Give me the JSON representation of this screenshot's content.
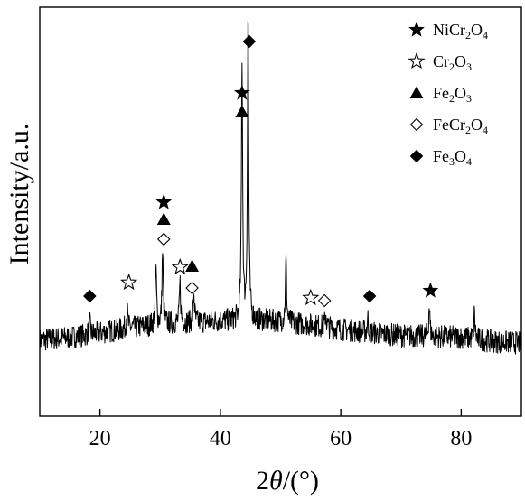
{
  "chart_data": {
    "type": "line",
    "title": "",
    "ylabel": "Intensity/a.u.",
    "xlabel_parts": {
      "two": "2",
      "theta": "θ",
      "unit": "/(°)"
    },
    "xlim": [
      10,
      90
    ],
    "xticks": [
      20,
      40,
      60,
      80
    ],
    "y_ticks_shown": false,
    "grid": false,
    "legend_position": "top-right",
    "line_color": "#000000",
    "baseline_hump": [
      [
        10,
        1.0
      ],
      [
        15,
        2.0
      ],
      [
        20,
        3.5
      ],
      [
        25,
        5.2
      ],
      [
        28,
        6.0
      ],
      [
        32,
        6.8
      ],
      [
        36,
        7.2
      ],
      [
        40,
        7.6
      ],
      [
        45,
        7.8
      ],
      [
        48,
        7.7
      ],
      [
        52,
        7.0
      ],
      [
        56,
        6.0
      ],
      [
        60,
        4.8
      ],
      [
        65,
        3.5
      ],
      [
        70,
        2.6
      ],
      [
        75,
        2.2
      ],
      [
        80,
        2.0
      ],
      [
        85,
        0.6
      ],
      [
        90,
        0.0
      ]
    ],
    "peaks": [
      {
        "x": 18.3,
        "height": 4
      },
      {
        "x": 24.5,
        "height": 7
      },
      {
        "x": 29.3,
        "height": 20
      },
      {
        "x": 30.4,
        "height": 25
      },
      {
        "x": 33.3,
        "height": 14
      },
      {
        "x": 35.6,
        "height": 10
      },
      {
        "x": 43.6,
        "height": 90
      },
      {
        "x": 44.6,
        "height": 107
      },
      {
        "x": 50.9,
        "height": 22
      },
      {
        "x": 57.5,
        "height": 5
      },
      {
        "x": 64.5,
        "height": 5
      },
      {
        "x": 74.7,
        "height": 11
      },
      {
        "x": 82.2,
        "height": 9
      }
    ],
    "legend": [
      {
        "symbol": "filled-star",
        "base": "NiCr",
        "s1": "2",
        "mid": "O",
        "s2": "4"
      },
      {
        "symbol": "open-star",
        "base": "Cr",
        "s1": "2",
        "mid": "O",
        "s2": "3"
      },
      {
        "symbol": "filled-triangle",
        "base": "Fe",
        "s1": "2",
        "mid": "O",
        "s2": "3"
      },
      {
        "symbol": "open-diamond",
        "base": "FeCr",
        "s1": "2",
        "mid": "O",
        "s2": "4"
      },
      {
        "symbol": "filled-diamond",
        "base": "Fe",
        "s1": "3",
        "mid": "O",
        "s2": "4"
      }
    ],
    "annotations": [
      {
        "x": 18.3,
        "symbols": [
          "filled-diamond"
        ]
      },
      {
        "x": 24.8,
        "symbols": [
          "open-star"
        ]
      },
      {
        "x": 30.6,
        "symbols": [
          "open-diamond",
          "filled-triangle",
          "filled-star"
        ]
      },
      {
        "x": 33.3,
        "symbols": [
          "open-star"
        ]
      },
      {
        "x": 35.3,
        "symbols": [
          "open-diamond",
          "filled-triangle"
        ]
      },
      {
        "x": 43.6,
        "symbols": [
          "filled-triangle",
          "filled-star"
        ]
      },
      {
        "x": 44.8,
        "symbols": [
          "filled-diamond"
        ]
      },
      {
        "x": 55.0,
        "symbols": [
          "open-star"
        ]
      },
      {
        "x": 57.3,
        "symbols": [
          "open-diamond"
        ]
      },
      {
        "x": 64.8,
        "symbols": [
          "filled-diamond"
        ]
      },
      {
        "x": 74.9,
        "symbols": [
          "filled-star"
        ]
      }
    ],
    "symbol_names": {
      "filled-star": "filled-star-icon",
      "open-star": "open-star-icon",
      "filled-triangle": "filled-triangle-icon",
      "open-diamond": "open-diamond-icon",
      "filled-diamond": "filled-diamond-icon"
    }
  }
}
